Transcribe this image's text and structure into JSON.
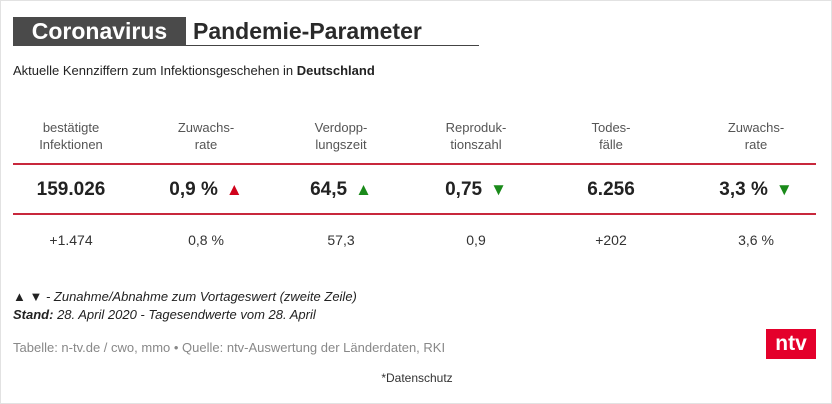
{
  "header": {
    "title_a": "Coronavirus",
    "title_b": "Pandemie-Parameter"
  },
  "subtitle": {
    "text": "Aktuelle Kennziffern zum Infektionsgeschehen in ",
    "bold": "Deutschland"
  },
  "table": {
    "columns": [
      [
        "bestätigte",
        "Infektionen"
      ],
      [
        "Zuwachs-",
        "rate"
      ],
      [
        "Verdopp-",
        "lungszeit"
      ],
      [
        "Reproduk-",
        "tionszahl"
      ],
      [
        "Todes-",
        "fälle"
      ],
      [
        "Zuwachs-",
        "rate"
      ]
    ],
    "main": [
      {
        "value": "159.026"
      },
      {
        "value": "0,9 %",
        "arrow": "▲",
        "arrow_color": "#d0021b"
      },
      {
        "value": "64,5",
        "arrow": "▲",
        "arrow_color": "#1a8a1a"
      },
      {
        "value": "0,75",
        "arrow": "▼",
        "arrow_color": "#1a8a1a"
      },
      {
        "value": "6.256"
      },
      {
        "value": "3,3 %",
        "arrow": "▼",
        "arrow_color": "#1a8a1a"
      }
    ],
    "previous": [
      "+1.474",
      "0,8 %",
      "57,3",
      "0,9",
      "+202",
      "3,6 %"
    ]
  },
  "notes": {
    "legend": "▲ ▼ - Zunahme/Abnahme zum Vortageswert (zweite Zeile)",
    "stand_label": "Stand:",
    "stand_text": " 28. April 2020 - Tagesendwerte vom 28. April"
  },
  "source": "Tabelle: n-tv.de / cwo, mmo • Quelle: ntv-Auswertung der Länderdaten, RKI",
  "logo": "ntv",
  "privacy": "*Datenschutz"
}
